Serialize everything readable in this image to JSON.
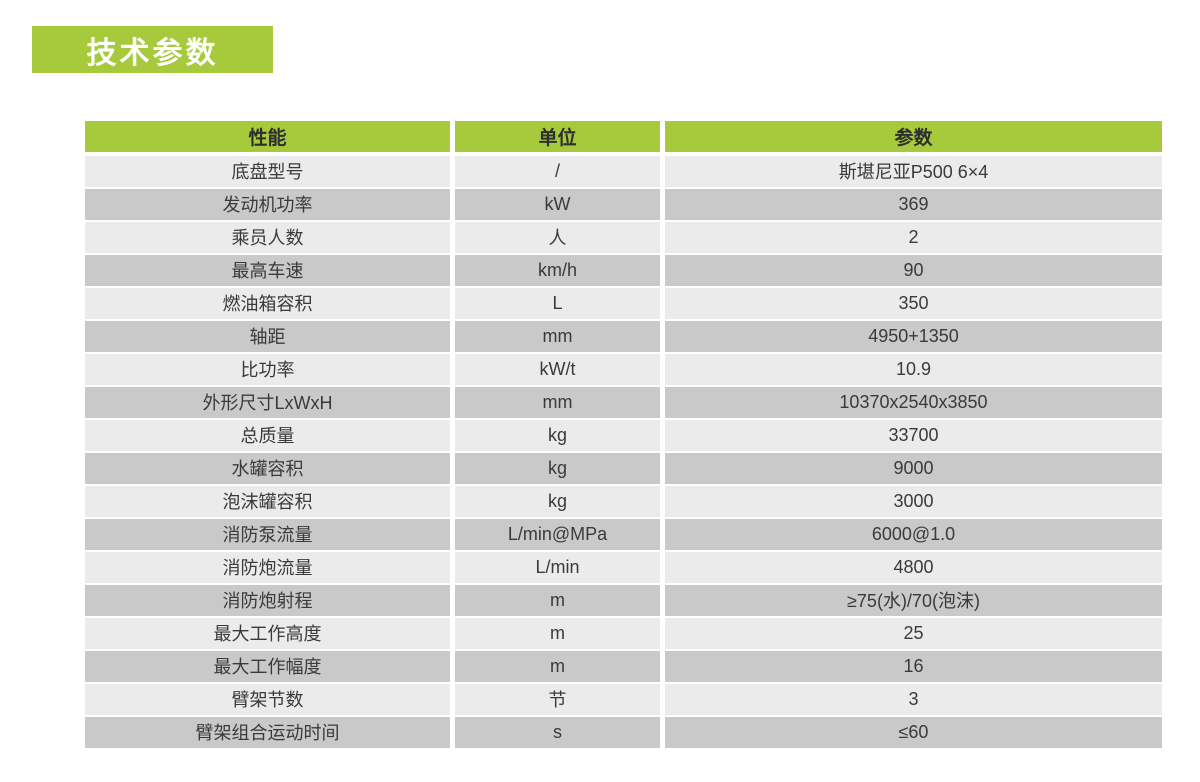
{
  "title": {
    "label": "技术参数"
  },
  "colors": {
    "green": "#a6ca3c",
    "row_light": "#ebebeb",
    "row_dark": "#c9c9c9",
    "cell_text": "#3a3a3a",
    "header_text": "#2e2e2e",
    "title_text": "#ffffff"
  },
  "table": {
    "header": {
      "performance": "性能",
      "unit": "单位",
      "parameter": "参数"
    },
    "rows": [
      {
        "performance": "底盘型号",
        "unit": "/",
        "parameter": "斯堪尼亚P500 6×4"
      },
      {
        "performance": "发动机功率",
        "unit": "kW",
        "parameter": "369"
      },
      {
        "performance": "乘员人数",
        "unit": "人",
        "parameter": "2"
      },
      {
        "performance": "最高车速",
        "unit": "km/h",
        "parameter": "90"
      },
      {
        "performance": "燃油箱容积",
        "unit": "L",
        "parameter": "350"
      },
      {
        "performance": "轴距",
        "unit": "mm",
        "parameter": "4950+1350"
      },
      {
        "performance": "比功率",
        "unit": "kW/t",
        "parameter": "10.9"
      },
      {
        "performance": "外形尺寸LxWxH",
        "unit": "mm",
        "parameter": "10370x2540x3850"
      },
      {
        "performance": "总质量",
        "unit": "kg",
        "parameter": "33700"
      },
      {
        "performance": "水罐容积",
        "unit": "kg",
        "parameter": "9000"
      },
      {
        "performance": "泡沫罐容积",
        "unit": "kg",
        "parameter": "3000"
      },
      {
        "performance": "消防泵流量",
        "unit": "L/min@MPa",
        "parameter": "6000@1.0"
      },
      {
        "performance": "消防炮流量",
        "unit": "L/min",
        "parameter": "4800"
      },
      {
        "performance": "消防炮射程",
        "unit": "m",
        "parameter": "≥75(水)/70(泡沫)"
      },
      {
        "performance": "最大工作高度",
        "unit": "m",
        "parameter": "25"
      },
      {
        "performance": "最大工作幅度",
        "unit": "m",
        "parameter": "16"
      },
      {
        "performance": "臂架节数",
        "unit": "节",
        "parameter": "3"
      },
      {
        "performance": "臂架组合运动时间",
        "unit": "s",
        "parameter": "≤60"
      }
    ]
  }
}
